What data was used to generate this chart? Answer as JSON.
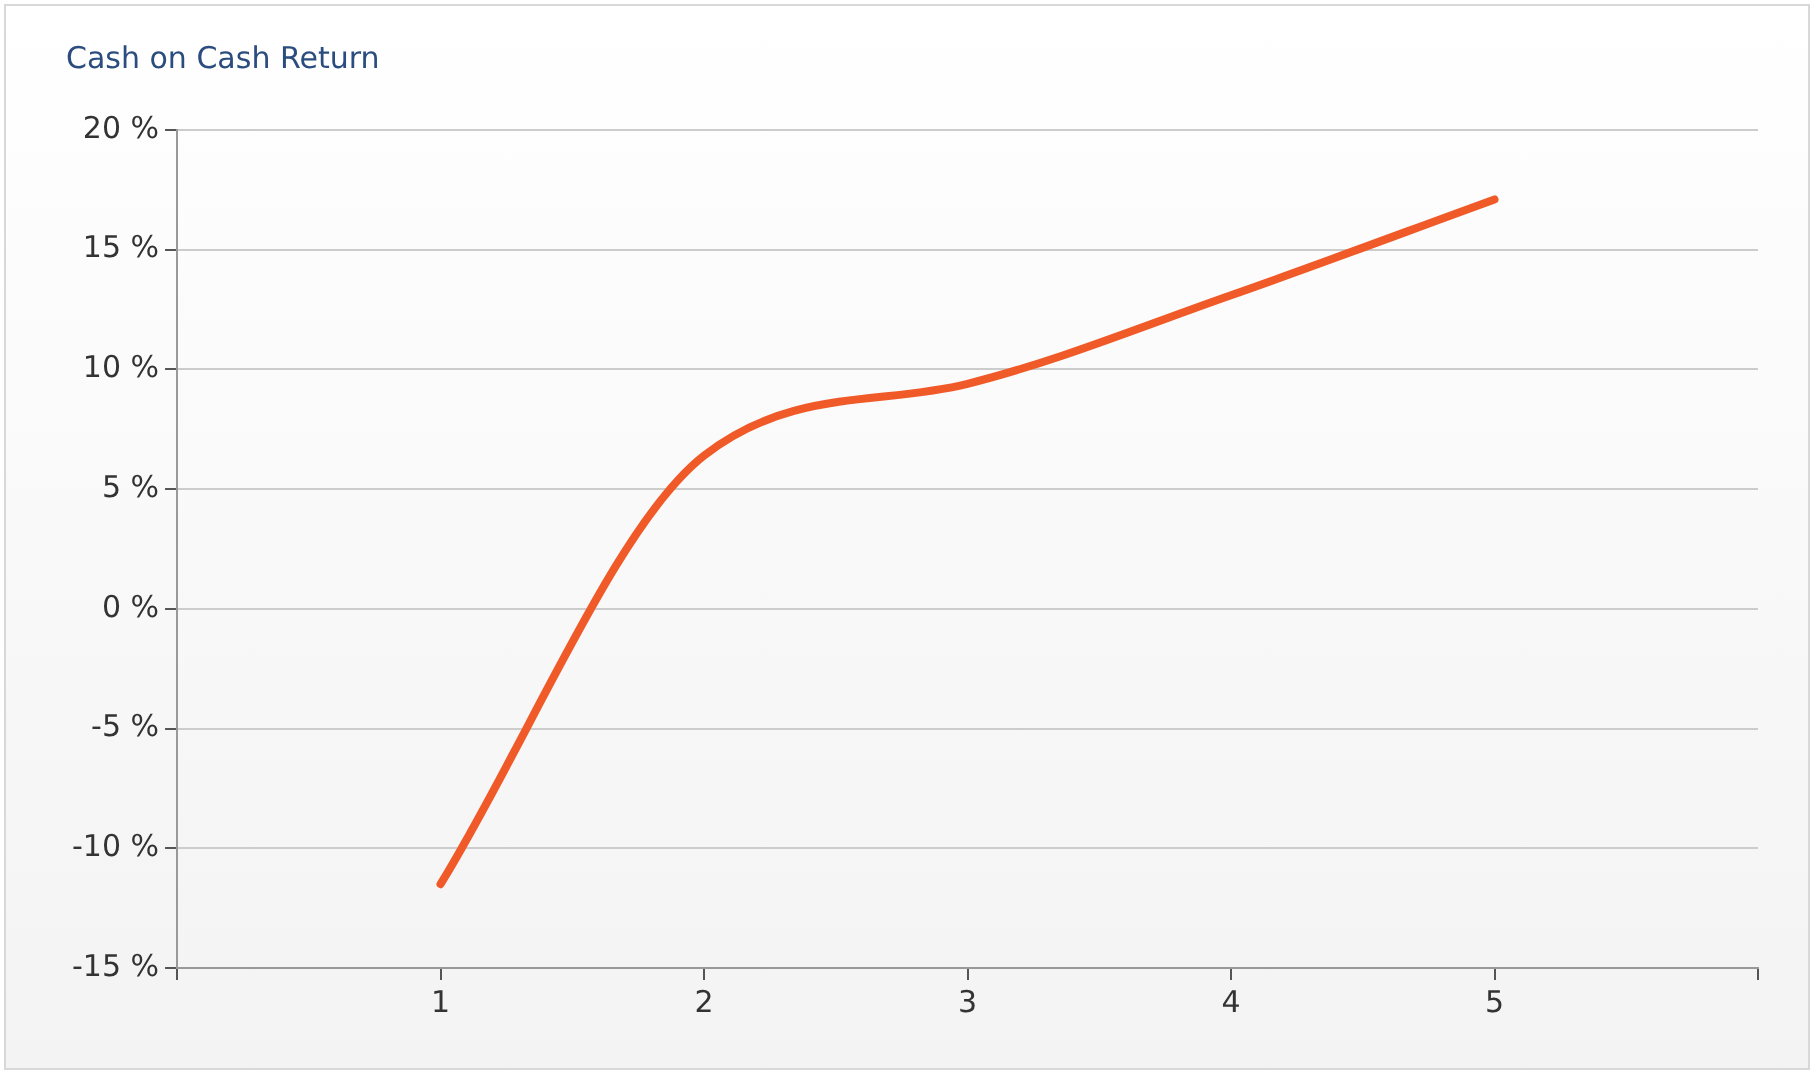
{
  "chart_data": {
    "type": "line",
    "title": "Cash on Cash Return",
    "x": [
      1,
      2,
      3,
      4,
      5
    ],
    "series": [
      {
        "color": "#f05a28",
        "values": [
          -11.5,
          6.4,
          9.4,
          13.1,
          17.1
        ]
      }
    ],
    "xlim": [
      0,
      6
    ],
    "xticks": [
      {
        "value": 0,
        "label": null
      },
      1,
      2,
      3,
      4,
      5,
      {
        "value": 6,
        "label": null
      }
    ],
    "ylim": [
      -15,
      20
    ],
    "yticks": [
      {
        "value": -15,
        "label": "-15 %"
      },
      {
        "value": -10,
        "label": "-10 %"
      },
      {
        "value": -5,
        "label": "-5 %"
      },
      {
        "value": 0,
        "label": "0 %"
      },
      {
        "value": 5,
        "label": "5 %"
      },
      {
        "value": 10,
        "label": "10 %"
      },
      {
        "value": 15,
        "label": "15 %"
      },
      {
        "value": 20,
        "label": "20 %"
      }
    ],
    "grid": "y",
    "legend": false,
    "marker": "none",
    "line_style": "solid"
  }
}
